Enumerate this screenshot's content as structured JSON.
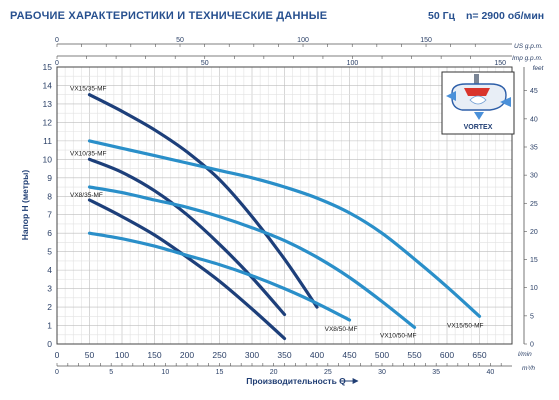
{
  "header": {
    "title": "РАБОЧИЕ ХАРАКТЕРИСТИКИ И ТЕХНИЧЕСКИЕ ДАННЫЕ",
    "frequency": "50 Гц",
    "speed": "n= 2900 об/мин"
  },
  "colors": {
    "dark_curve": "#1d3f7a",
    "light_curve": "#2a8fc9",
    "grid": "#c8c8c8",
    "frame": "#444444"
  },
  "chart_data": {
    "type": "line",
    "title": "",
    "xlabel": "Производительность Q",
    "ylabel": "Напор H (метры)",
    "xlim": [
      0,
      700
    ],
    "ylim": [
      0,
      15
    ],
    "x_unit": "l/min",
    "x_ticks": [
      0,
      50,
      100,
      150,
      200,
      250,
      300,
      350,
      400,
      450,
      500,
      550,
      600,
      650
    ],
    "y_ticks": [
      0,
      1,
      2,
      3,
      4,
      5,
      6,
      7,
      8,
      9,
      10,
      11,
      12,
      13,
      14,
      15
    ],
    "top_axis_us": {
      "unit": "US g.p.m.",
      "ticks": [
        0,
        50,
        100,
        150
      ],
      "l_per_unit": 3.785
    },
    "top_axis_imp": {
      "unit": "Imp g.p.m.",
      "ticks": [
        0,
        50,
        100,
        150
      ],
      "l_per_unit": 4.546
    },
    "bottom_axis_m3h": {
      "unit": "m³/h",
      "ticks": [
        0,
        5,
        10,
        15,
        20,
        25,
        30,
        35,
        40
      ],
      "l_per_unit": 16.667
    },
    "right_axis_feet": {
      "unit": "feet",
      "ticks": [
        0,
        5,
        10,
        15,
        20,
        25,
        30,
        35,
        40,
        45
      ],
      "m_per_unit": 0.3048
    },
    "grid": true,
    "series": [
      {
        "name": "VX15/35-MF",
        "style": "dark",
        "x": [
          50,
          100,
          150,
          200,
          250,
          300,
          350,
          400
        ],
        "y": [
          13.5,
          12.6,
          11.6,
          10.4,
          8.9,
          6.9,
          4.6,
          2.0
        ]
      },
      {
        "name": "VX10/35-MF",
        "style": "dark",
        "x": [
          50,
          100,
          150,
          200,
          250,
          300,
          350
        ],
        "y": [
          10.0,
          9.3,
          8.3,
          7.0,
          5.4,
          3.6,
          1.6
        ]
      },
      {
        "name": "VX8/35-MF",
        "style": "dark",
        "x": [
          50,
          100,
          150,
          200,
          250,
          300,
          350
        ],
        "y": [
          7.8,
          6.9,
          5.9,
          4.7,
          3.4,
          1.9,
          0.3
        ]
      },
      {
        "name": "VX15/50-MF",
        "style": "light",
        "x": [
          50,
          100,
          150,
          200,
          250,
          300,
          350,
          400,
          450,
          500,
          550,
          600,
          650
        ],
        "y": [
          11.0,
          10.6,
          10.2,
          9.8,
          9.4,
          9.0,
          8.5,
          7.9,
          7.1,
          6.0,
          4.6,
          3.1,
          1.5
        ]
      },
      {
        "name": "VX10/50-MF",
        "style": "light",
        "x": [
          50,
          100,
          150,
          200,
          250,
          300,
          350,
          400,
          450,
          500,
          550
        ],
        "y": [
          8.5,
          8.2,
          7.8,
          7.4,
          6.9,
          6.3,
          5.6,
          4.7,
          3.6,
          2.3,
          0.9
        ]
      },
      {
        "name": "VX8/50-MF",
        "style": "light",
        "x": [
          50,
          100,
          150,
          200,
          250,
          300,
          350,
          400,
          450
        ],
        "y": [
          6.0,
          5.7,
          5.3,
          4.8,
          4.3,
          3.7,
          3.0,
          2.2,
          1.3
        ]
      }
    ],
    "inset_label": "VORTEX"
  }
}
